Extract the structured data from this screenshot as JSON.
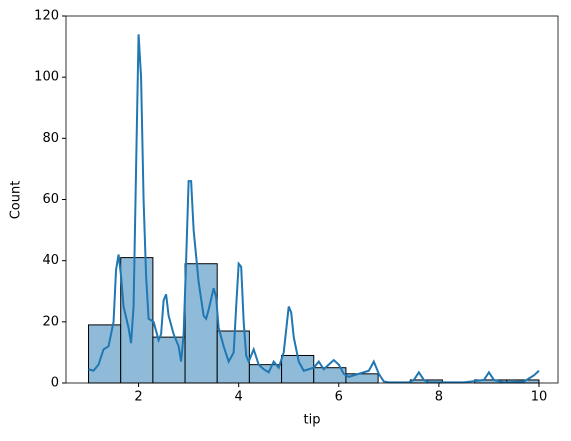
{
  "chart_data": {
    "type": "histogram",
    "xlabel": "tip",
    "ylabel": "Count",
    "bins": [
      1,
      1.643,
      2.286,
      2.929,
      3.571,
      4.214,
      4.857,
      5.5,
      6.143,
      6.786,
      7.429,
      8.071,
      8.714,
      9.357,
      10
    ],
    "values": [
      19,
      41,
      15,
      39,
      17,
      6,
      9,
      5,
      3,
      0,
      1,
      0,
      1,
      1
    ],
    "color": "#8fbbd9",
    "edgecolor": "#000000",
    "kde": {
      "color": "#1f77b4",
      "x": [
        1.0,
        1.1,
        1.2,
        1.3,
        1.4,
        1.5,
        1.55,
        1.6,
        1.65,
        1.7,
        1.8,
        1.85,
        1.9,
        1.95,
        2.0,
        2.05,
        2.1,
        2.15,
        2.2,
        2.3,
        2.4,
        2.45,
        2.5,
        2.55,
        2.6,
        2.7,
        2.8,
        2.85,
        2.9,
        2.95,
        3.0,
        3.05,
        3.1,
        3.2,
        3.3,
        3.35,
        3.4,
        3.5,
        3.55,
        3.6,
        3.7,
        3.8,
        3.9,
        3.95,
        4.0,
        4.05,
        4.1,
        4.15,
        4.2,
        4.3,
        4.4,
        4.5,
        4.6,
        4.7,
        4.8,
        4.9,
        5.0,
        5.05,
        5.1,
        5.2,
        5.3,
        5.4,
        5.5,
        5.6,
        5.7,
        5.8,
        5.9,
        6.0,
        6.1,
        6.2,
        6.4,
        6.6,
        6.7,
        6.8,
        6.9,
        7.0,
        7.4,
        7.5,
        7.6,
        7.7,
        7.8,
        8.5,
        8.9,
        9.0,
        9.1,
        9.3,
        9.7,
        9.9,
        10.0
      ],
      "values": [
        4.5,
        4,
        6,
        11,
        12,
        20,
        37,
        42,
        35,
        25,
        18,
        13,
        25,
        70,
        114,
        100,
        60,
        35,
        21,
        20,
        14,
        16,
        27,
        29,
        22,
        16,
        12,
        7,
        16,
        40,
        66,
        66,
        50,
        33,
        22,
        21,
        24,
        31,
        28,
        18,
        12,
        7,
        10,
        25,
        39,
        38,
        20,
        9,
        7,
        11,
        6,
        4.5,
        3.5,
        7,
        5,
        10,
        25,
        23,
        15,
        7,
        4,
        4.5,
        5,
        7,
        4.5,
        6,
        7.5,
        6,
        3,
        2,
        3,
        4,
        7,
        3,
        0.5,
        0.2,
        0.2,
        1,
        3.5,
        1,
        0.2,
        0.2,
        1,
        3.5,
        1,
        0.2,
        0.5,
        2.5,
        4
      ]
    },
    "xlim": [
      0.55,
      10.38
    ],
    "ylim": [
      0,
      120
    ],
    "xticks": [
      2,
      4,
      6,
      8,
      10
    ],
    "yticks": [
      0,
      20,
      40,
      60,
      80,
      100,
      120
    ]
  }
}
